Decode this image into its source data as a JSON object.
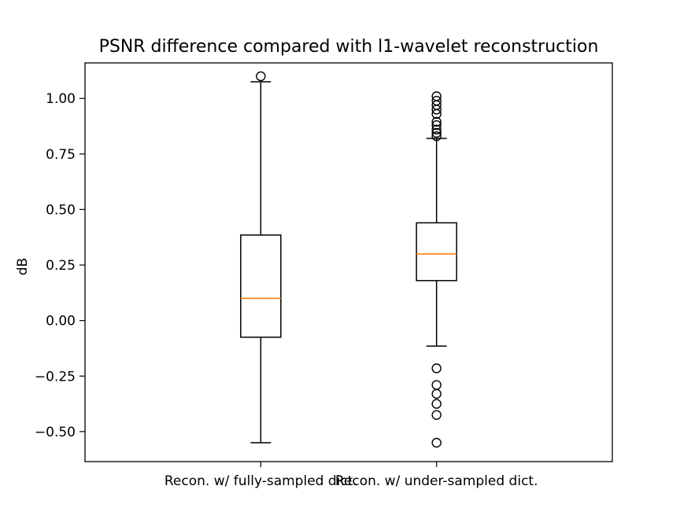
{
  "chart_data": {
    "type": "box",
    "title": "PSNR difference compared with l1-wavelet reconstruction",
    "xlabel": "",
    "ylabel": "dB",
    "ylim": [
      -0.635,
      1.16
    ],
    "yticks": [
      1.0,
      0.75,
      0.5,
      0.25,
      0.0,
      -0.25,
      -0.5
    ],
    "ytick_labels": [
      "1.00",
      "0.75",
      "0.50",
      "0.25",
      "0.00",
      "−0.25",
      "−0.50"
    ],
    "grid": false,
    "colors": {
      "box": "#000000",
      "median": "#ff7f0e",
      "flier": "#000000"
    },
    "categories": [
      "Recon. w/ fully-sampled dict.",
      "Recon. w/ under-sampled dict."
    ],
    "series": [
      {
        "whisker_low": -0.55,
        "q1": -0.075,
        "median": 0.1,
        "q3": 0.385,
        "whisker_high": 1.075,
        "outliers": [
          1.1
        ]
      },
      {
        "whisker_low": -0.115,
        "q1": 0.18,
        "median": 0.3,
        "q3": 0.44,
        "whisker_high": 0.82,
        "outliers": [
          0.83,
          0.845,
          0.86,
          0.88,
          0.895,
          0.93,
          0.95,
          0.97,
          0.99,
          1.01,
          -0.215,
          -0.29,
          -0.33,
          -0.375,
          -0.425,
          -0.55
        ]
      }
    ]
  }
}
